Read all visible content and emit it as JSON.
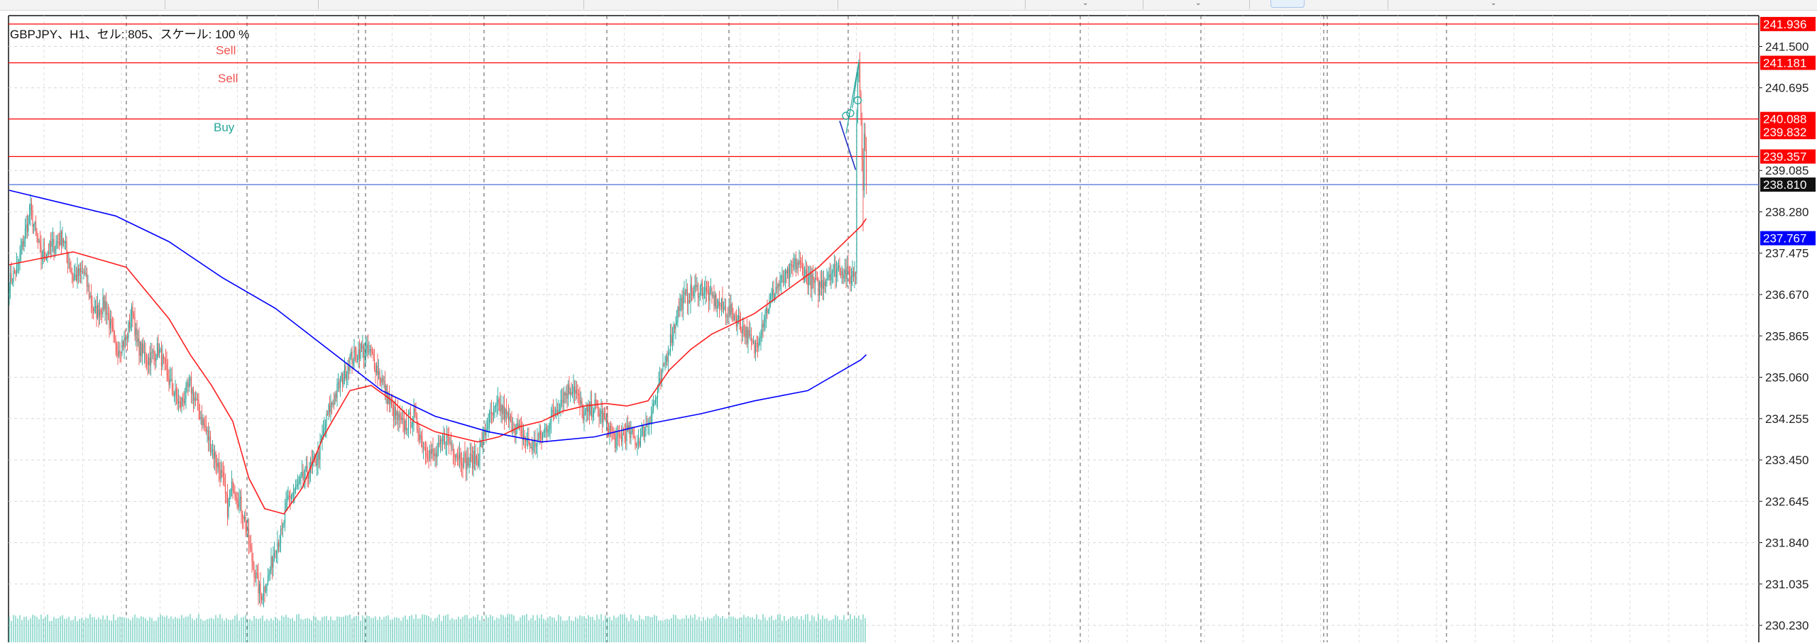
{
  "chart_info": "GBPJPY、H1、セル: 805、スケール: 100 %",
  "chart_data": {
    "type": "candlestick",
    "symbol": "GBPJPY",
    "timeframe": "H1",
    "ylim": [
      229.9,
      242.1
    ],
    "y_ticks": [
      "241.500",
      "240.695",
      "239.085",
      "238.280",
      "237.475",
      "236.670",
      "235.865",
      "235.060",
      "234.255",
      "233.450",
      "232.645",
      "231.840",
      "231.035",
      "230.230"
    ],
    "price_badges": [
      {
        "value": 241.936,
        "label": "241.936",
        "bg": "#ff0000",
        "fg": "#ffffff"
      },
      {
        "value": 241.181,
        "label": "241.181",
        "bg": "#ff0000",
        "fg": "#ffffff"
      },
      {
        "value": 240.088,
        "label": "240.088",
        "bg": "#ff0000",
        "fg": "#ffffff"
      },
      {
        "value": 239.832,
        "label": "239.832",
        "bg": "#ff0000",
        "fg": "#ffffff"
      },
      {
        "value": 239.357,
        "label": "239.357",
        "bg": "#ff0000",
        "fg": "#ffffff"
      },
      {
        "value": 238.81,
        "label": "238.810",
        "bg": "#111111",
        "fg": "#ffffff"
      },
      {
        "value": 237.767,
        "label": "237.767",
        "bg": "#0000ff",
        "fg": "#ffffff"
      }
    ],
    "horizontal_lines": [
      {
        "value": 241.936,
        "color": "#ff0000"
      },
      {
        "value": 241.181,
        "color": "#ff0000"
      },
      {
        "value": 240.088,
        "color": "#ff0000"
      },
      {
        "value": 239.357,
        "color": "#ff0000"
      },
      {
        "value": 238.81,
        "color": "#4a6fd6"
      }
    ],
    "trade_labels": [
      {
        "text": "Sell",
        "bar": 194,
        "price": 241.35,
        "color": "#ef5350"
      },
      {
        "text": "Sell",
        "bar": 196,
        "price": 240.8,
        "color": "#ef5350"
      },
      {
        "text": "Buy",
        "bar": 192,
        "price": 239.85,
        "color": "#26a69a"
      }
    ],
    "close_path": [
      [
        0,
        236.9
      ],
      [
        8,
        237.2
      ],
      [
        14,
        237.8
      ],
      [
        20,
        238.3
      ],
      [
        30,
        237.4
      ],
      [
        40,
        237.6
      ],
      [
        50,
        237.8
      ],
      [
        60,
        237.0
      ],
      [
        70,
        237.1
      ],
      [
        80,
        236.3
      ],
      [
        90,
        236.5
      ],
      [
        100,
        235.6
      ],
      [
        110,
        235.8
      ],
      [
        116,
        236.4
      ],
      [
        120,
        235.7
      ],
      [
        130,
        235.4
      ],
      [
        140,
        235.6
      ],
      [
        150,
        235.0
      ],
      [
        160,
        234.5
      ],
      [
        170,
        234.9
      ],
      [
        180,
        234.3
      ],
      [
        190,
        233.7
      ],
      [
        200,
        233.1
      ],
      [
        205,
        232.5
      ],
      [
        210,
        233.0
      ],
      [
        220,
        232.4
      ],
      [
        228,
        231.5
      ],
      [
        236,
        230.8
      ],
      [
        244,
        231.2
      ],
      [
        250,
        231.8
      ],
      [
        256,
        232.0
      ],
      [
        262,
        232.7
      ],
      [
        270,
        232.9
      ],
      [
        280,
        233.2
      ],
      [
        290,
        233.5
      ],
      [
        300,
        234.4
      ],
      [
        310,
        234.9
      ],
      [
        320,
        235.4
      ],
      [
        330,
        235.6
      ],
      [
        340,
        235.5
      ],
      [
        350,
        235.0
      ],
      [
        360,
        234.4
      ],
      [
        370,
        234.1
      ],
      [
        380,
        234.3
      ],
      [
        390,
        233.7
      ],
      [
        400,
        233.5
      ],
      [
        410,
        233.9
      ],
      [
        420,
        233.6
      ],
      [
        430,
        233.4
      ],
      [
        440,
        233.5
      ],
      [
        450,
        234.2
      ],
      [
        460,
        234.5
      ],
      [
        470,
        234.2
      ],
      [
        480,
        234.0
      ],
      [
        490,
        233.7
      ],
      [
        500,
        233.9
      ],
      [
        510,
        234.3
      ],
      [
        520,
        234.7
      ],
      [
        530,
        234.9
      ],
      [
        540,
        234.3
      ],
      [
        550,
        234.5
      ],
      [
        560,
        234.2
      ],
      [
        570,
        233.8
      ],
      [
        580,
        234.0
      ],
      [
        590,
        233.8
      ],
      [
        600,
        234.2
      ],
      [
        610,
        234.8
      ],
      [
        620,
        235.7
      ],
      [
        630,
        236.5
      ],
      [
        640,
        236.7
      ],
      [
        650,
        236.8
      ],
      [
        660,
        236.6
      ],
      [
        670,
        236.4
      ],
      [
        680,
        236.3
      ],
      [
        690,
        236.0
      ],
      [
        700,
        235.6
      ],
      [
        710,
        236.3
      ],
      [
        720,
        236.8
      ],
      [
        730,
        237.0
      ],
      [
        740,
        237.3
      ],
      [
        750,
        237.0
      ],
      [
        760,
        236.8
      ],
      [
        770,
        237.1
      ],
      [
        780,
        237.2
      ],
      [
        790,
        237.0
      ],
      [
        800,
        237.3
      ],
      [
        805,
        237.4
      ]
    ],
    "series": [
      {
        "name": "MA20",
        "color": "#ff2020",
        "values": [
          [
            0,
            237.25
          ],
          [
            60,
            237.5
          ],
          [
            110,
            237.2
          ],
          [
            150,
            236.2
          ],
          [
            170,
            235.5
          ],
          [
            190,
            234.9
          ],
          [
            210,
            234.2
          ],
          [
            225,
            233.1
          ],
          [
            240,
            232.5
          ],
          [
            258,
            232.4
          ],
          [
            275,
            232.9
          ],
          [
            295,
            233.9
          ],
          [
            320,
            234.8
          ],
          [
            340,
            234.9
          ],
          [
            360,
            234.6
          ],
          [
            380,
            234.2
          ],
          [
            400,
            234.0
          ],
          [
            420,
            233.9
          ],
          [
            440,
            233.8
          ],
          [
            460,
            233.9
          ],
          [
            480,
            234.1
          ],
          [
            500,
            234.2
          ],
          [
            520,
            234.4
          ],
          [
            540,
            234.5
          ],
          [
            560,
            234.55
          ],
          [
            580,
            234.5
          ],
          [
            600,
            234.6
          ],
          [
            620,
            235.2
          ],
          [
            640,
            235.6
          ],
          [
            660,
            235.9
          ],
          [
            680,
            236.1
          ],
          [
            700,
            236.3
          ],
          [
            720,
            236.6
          ],
          [
            740,
            236.9
          ],
          [
            760,
            237.2
          ],
          [
            780,
            237.6
          ],
          [
            800,
            238.0
          ],
          [
            805,
            238.15
          ]
        ]
      },
      {
        "name": "MA100",
        "color": "#0000ff",
        "values": [
          [
            0,
            238.7
          ],
          [
            50,
            238.45
          ],
          [
            100,
            238.2
          ],
          [
            150,
            237.7
          ],
          [
            200,
            237.0
          ],
          [
            250,
            236.4
          ],
          [
            300,
            235.6
          ],
          [
            350,
            234.8
          ],
          [
            400,
            234.3
          ],
          [
            450,
            234.0
          ],
          [
            500,
            233.8
          ],
          [
            550,
            233.9
          ],
          [
            600,
            234.15
          ],
          [
            650,
            234.35
          ],
          [
            700,
            234.6
          ],
          [
            750,
            234.8
          ],
          [
            800,
            235.4
          ],
          [
            805,
            235.5
          ]
        ]
      }
    ]
  }
}
